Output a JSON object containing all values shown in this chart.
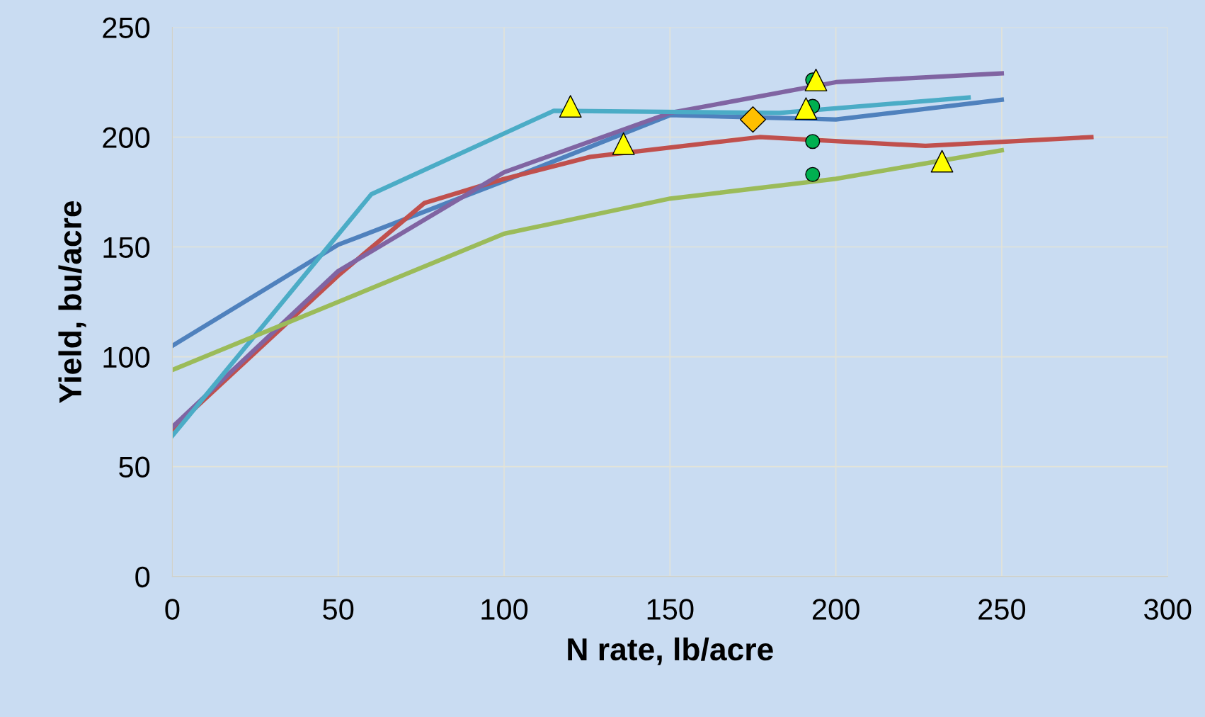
{
  "chart_data": {
    "type": "line",
    "xlabel": "N rate, lb/acre",
    "ylabel": "Yield, bu/acre",
    "xlim": [
      0,
      300
    ],
    "ylim": [
      0,
      250
    ],
    "xticks": [
      0,
      50,
      100,
      150,
      200,
      250,
      300
    ],
    "yticks": [
      0,
      50,
      100,
      150,
      200,
      250
    ],
    "grid": true,
    "legend": false,
    "series": [
      {
        "color": "#4f81bd",
        "x": [
          0,
          50,
          100,
          150,
          200,
          250
        ],
        "values": [
          105,
          151,
          180,
          210,
          208,
          217
        ]
      },
      {
        "color": "#c0504d",
        "x": [
          0,
          50,
          76,
          100,
          126,
          177,
          227,
          277
        ],
        "values": [
          67,
          137,
          170,
          181,
          191,
          200,
          196,
          200
        ]
      },
      {
        "color": "#8064a2",
        "x": [
          0,
          50,
          100,
          150,
          200,
          250
        ],
        "values": [
          68,
          139,
          184,
          211,
          225,
          229
        ]
      },
      {
        "color": "#4bacc6",
        "x": [
          0,
          60,
          115,
          183,
          240
        ],
        "values": [
          64,
          174,
          212,
          211,
          218
        ]
      },
      {
        "color": "#9bbb59",
        "x": [
          0,
          50,
          100,
          150,
          200,
          250
        ],
        "values": [
          94,
          125,
          156,
          172,
          181,
          194
        ]
      },
      {
        "type": "scatter",
        "marker": "circle",
        "color": "#00b050",
        "x": [
          193,
          193,
          193,
          193
        ],
        "values": [
          226,
          214,
          198,
          183
        ]
      },
      {
        "type": "scatter",
        "marker": "triangle",
        "color": "#ffff00",
        "x": [
          120,
          136,
          194,
          191,
          232
        ],
        "values": [
          214,
          197,
          226,
          213,
          189
        ]
      },
      {
        "type": "scatter",
        "marker": "diamond",
        "color": "#ffc000",
        "x": [
          175
        ],
        "values": [
          208
        ]
      }
    ]
  }
}
